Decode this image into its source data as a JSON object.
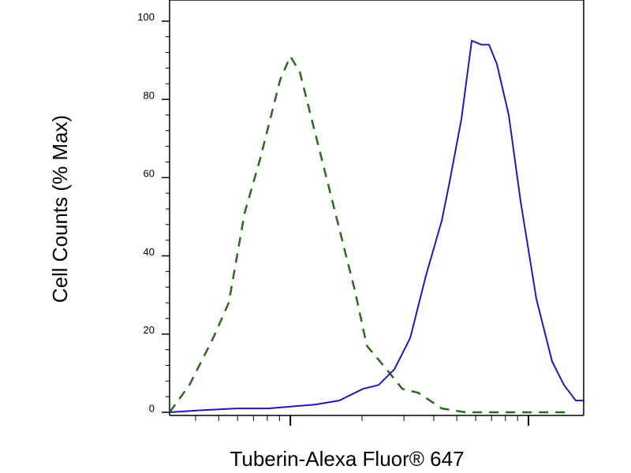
{
  "chart_data": {
    "type": "line",
    "xlabel": "Tuberin-Alexa Fluor® 647",
    "ylabel": "Cell Counts (% Max)",
    "xscale": "log",
    "xlim": [
      311,
      17053
    ],
    "xticks": [
      1000,
      10000
    ],
    "ylim": [
      -0.8,
      105.4
    ],
    "yticks": [
      0,
      20,
      40,
      60,
      80,
      100
    ],
    "series": [
      {
        "color": "#2a6a1e",
        "dashed": true,
        "x": [
          311,
          377,
          474,
          551,
          643,
          748,
          906,
          1000,
          1096,
          1228,
          1377,
          1604,
          1868,
          2095,
          2535,
          2953,
          3440,
          4323,
          5435,
          8586,
          14642
        ],
        "values": [
          0,
          7,
          19,
          28,
          51,
          65,
          85,
          91,
          87,
          75,
          63,
          47,
          31,
          17,
          11,
          6,
          5,
          1,
          0,
          0,
          0
        ]
      },
      {
        "color": "#1c1cb4",
        "dashed": false,
        "x": [
          311,
          439,
          596,
          808,
          1015,
          1276,
          1604,
          2017,
          2349,
          2735,
          3187,
          3711,
          4323,
          4666,
          5230,
          5777,
          6329,
          6830,
          7371,
          8264,
          9266,
          10793,
          12567,
          14093,
          15800,
          17053
        ],
        "values": [
          0,
          0.6,
          1,
          1,
          1.5,
          2,
          3,
          6,
          7,
          11,
          19,
          35,
          49,
          59,
          75,
          95,
          94,
          94,
          89,
          76,
          54,
          29,
          13,
          7,
          3,
          3
        ]
      }
    ]
  }
}
